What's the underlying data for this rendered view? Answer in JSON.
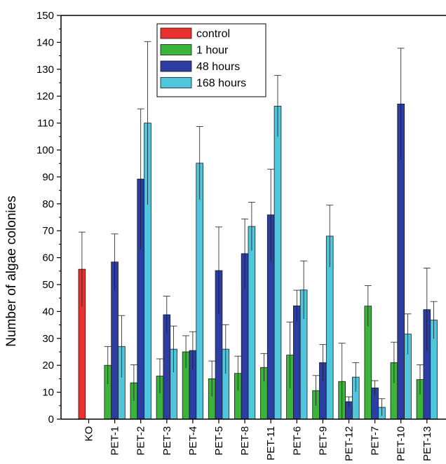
{
  "chart_data": {
    "type": "bar",
    "ylabel": "Number of algae colonies",
    "xlabel": "",
    "ylim": [
      0,
      150
    ],
    "yticks": [
      0,
      10,
      20,
      30,
      40,
      50,
      60,
      70,
      80,
      90,
      100,
      110,
      120,
      130,
      140,
      150
    ],
    "grid": false,
    "legend_position": "top-center",
    "categories": [
      "KO",
      "PET-1",
      "PET-2",
      "PET-3",
      "PET-4",
      "PET-5",
      "PET-8",
      "PET-11",
      "PET-6",
      "PET-9",
      "PET-12",
      "PET-7",
      "PET-10",
      "PET-13"
    ],
    "series": [
      {
        "name": "control",
        "color": "#e8312e",
        "values": [
          55.7,
          null,
          null,
          null,
          null,
          null,
          null,
          null,
          null,
          null,
          null,
          null,
          null,
          null
        ],
        "errors": [
          13.8,
          null,
          null,
          null,
          null,
          null,
          null,
          null,
          null,
          null,
          null,
          null,
          null,
          null
        ]
      },
      {
        "name": "1 hour",
        "color": "#3cb43c",
        "values": [
          null,
          20.0,
          13.5,
          16.0,
          25.0,
          15.0,
          17.0,
          19.2,
          23.8,
          10.6,
          14.0,
          42.0,
          21.0,
          14.7
        ],
        "errors": [
          null,
          7.0,
          6.7,
          6.4,
          6.0,
          6.6,
          6.4,
          5.2,
          12.3,
          5.6,
          14.2,
          7.6,
          7.6,
          5.5
        ]
      },
      {
        "name": "48 hours",
        "color": "#2c3ea3",
        "values": [
          null,
          58.4,
          89.2,
          38.8,
          25.5,
          55.2,
          61.5,
          75.9,
          42.1,
          21.0,
          6.5,
          11.6,
          117.1,
          40.7
        ],
        "errors": [
          null,
          10.4,
          26.1,
          6.9,
          7.0,
          16.2,
          12.9,
          17.0,
          5.8,
          6.7,
          1.8,
          2.7,
          20.7,
          15.4
        ]
      },
      {
        "name": "168 hours",
        "color": "#4fc6dc",
        "values": [
          null,
          27.0,
          110.0,
          26.0,
          95.1,
          26.0,
          71.6,
          116.3,
          48.0,
          68.0,
          15.6,
          4.4,
          31.6,
          36.8
        ],
        "errors": [
          null,
          11.5,
          30.3,
          8.6,
          13.6,
          9.1,
          9.0,
          11.4,
          10.8,
          11.5,
          5.4,
          3.2,
          7.5,
          6.9
        ]
      }
    ]
  }
}
